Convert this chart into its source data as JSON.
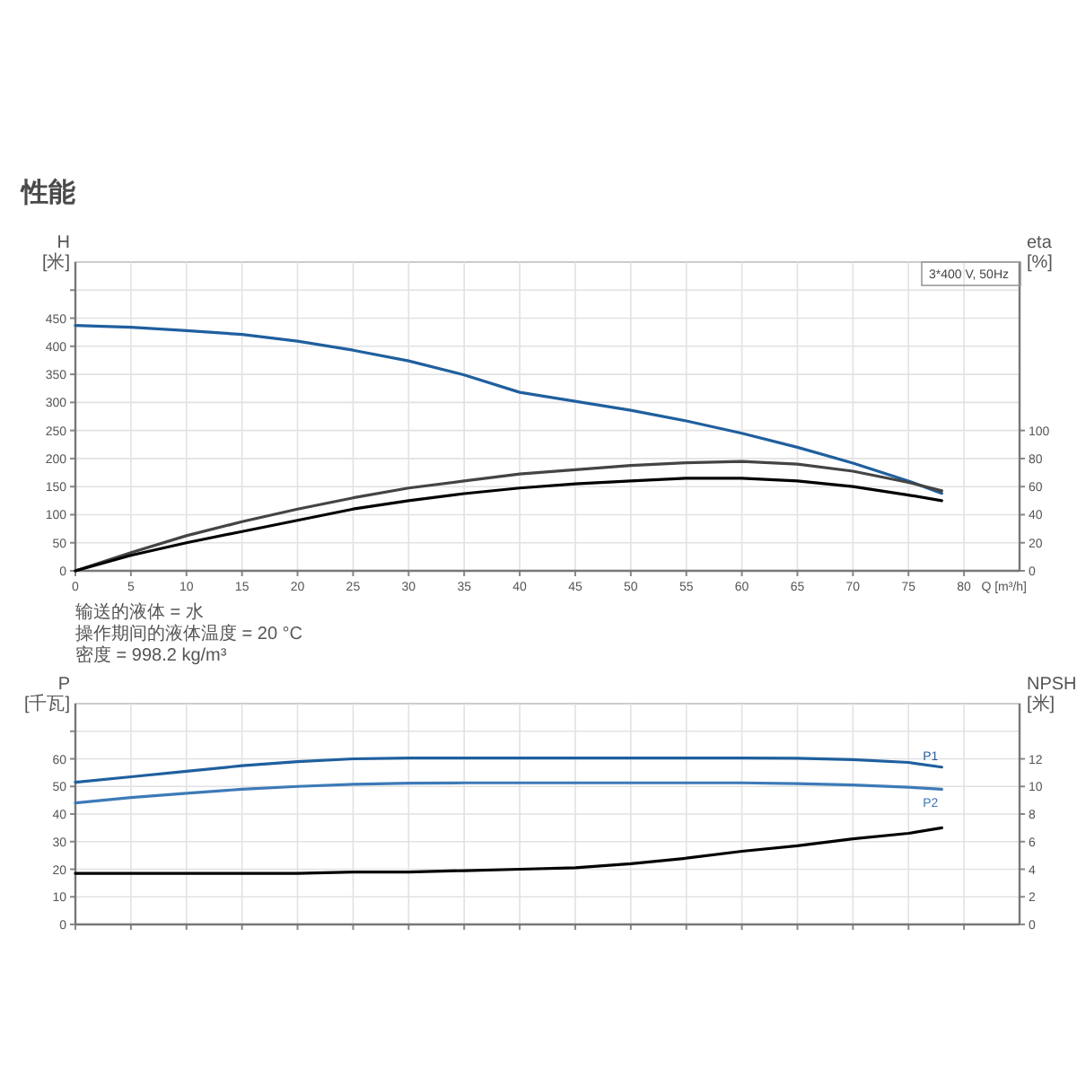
{
  "chart_data": [
    {
      "type": "line",
      "title": "性能",
      "subtitle": "3*400 V, 50Hz",
      "xlabel": "Q [m³/h]",
      "ylabel": "H\n[米]",
      "y2label": "eta\n[%]",
      "xlim": [
        0,
        85
      ],
      "xticks": [
        0,
        5,
        10,
        15,
        20,
        25,
        30,
        35,
        40,
        45,
        50,
        55,
        60,
        65,
        70,
        75,
        80
      ],
      "ylim": [
        0,
        550
      ],
      "yticks": [
        0,
        50,
        100,
        150,
        200,
        250,
        300,
        350,
        400,
        450,
        {
          "value": 500,
          "label": null
        }
      ],
      "y2lim": [
        0,
        220
      ],
      "y2ticks": [
        0,
        20,
        40,
        60,
        80,
        100
      ],
      "grid": true,
      "x": [
        0,
        5,
        10,
        15,
        20,
        25,
        30,
        35,
        40,
        45,
        50,
        55,
        60,
        65,
        70,
        75,
        78
      ],
      "series": [
        {
          "color": "#1f5f9e",
          "values": [
            437,
            434,
            428,
            421,
            409,
            393,
            374,
            349,
            318,
            302,
            286,
            267,
            245,
            220,
            192,
            160,
            138
          ]
        },
        {
          "color": "#444444",
          "axis": "y2",
          "values": [
            0,
            13,
            25,
            35,
            44,
            52,
            59,
            64,
            69,
            72,
            75,
            77,
            78,
            76,
            71,
            63,
            57
          ]
        },
        {
          "color": "#000000",
          "axis": "y2",
          "values": [
            0,
            11,
            20,
            28,
            36,
            44,
            50,
            55,
            59,
            62,
            64,
            66,
            66,
            64,
            60,
            54,
            50
          ]
        }
      ],
      "annotations": [
        "输送的液体 = 水",
        "操作期间的液体温度 = 20 °C",
        "密度 = 998.2 kg/m³"
      ]
    },
    {
      "type": "line",
      "ylabel": "P\n[千瓦]",
      "y2label": "NPSH\n[米]",
      "xlim": [
        0,
        85
      ],
      "xticks": [
        0,
        5,
        10,
        15,
        20,
        25,
        30,
        35,
        40,
        45,
        50,
        55,
        60,
        65,
        70,
        75,
        80
      ],
      "tick_labels": "y",
      "ylim": [
        0,
        80
      ],
      "yticks": [
        0,
        10,
        20,
        30,
        40,
        50,
        60,
        {
          "value": 70,
          "label": null
        }
      ],
      "y2lim": [
        0,
        16
      ],
      "y2ticks": [
        0,
        2,
        4,
        6,
        8,
        10,
        12
      ],
      "grid": true,
      "x": [
        0,
        5,
        10,
        15,
        20,
        25,
        30,
        35,
        40,
        45,
        50,
        55,
        60,
        65,
        70,
        75,
        78
      ],
      "series": [
        {
          "name": "P1",
          "color": "#1f5f9e",
          "values": [
            51.5,
            53.5,
            55.5,
            57.5,
            59,
            60,
            60.3,
            60.3,
            60.3,
            60.3,
            60.3,
            60.3,
            60.3,
            60.2,
            59.7,
            58.7,
            57
          ]
        },
        {
          "name": "P2",
          "color": "#3d7ab8",
          "values": [
            44,
            46,
            47.5,
            49,
            50,
            50.8,
            51.2,
            51.3,
            51.3,
            51.3,
            51.3,
            51.3,
            51.3,
            51,
            50.5,
            49.7,
            49
          ]
        },
        {
          "color": "#000000",
          "axis": "y2",
          "values": [
            3.7,
            3.7,
            3.7,
            3.7,
            3.7,
            3.8,
            3.8,
            3.9,
            4.0,
            4.1,
            4.4,
            4.8,
            5.3,
            5.7,
            6.2,
            6.6,
            7.0
          ]
        }
      ]
    }
  ]
}
